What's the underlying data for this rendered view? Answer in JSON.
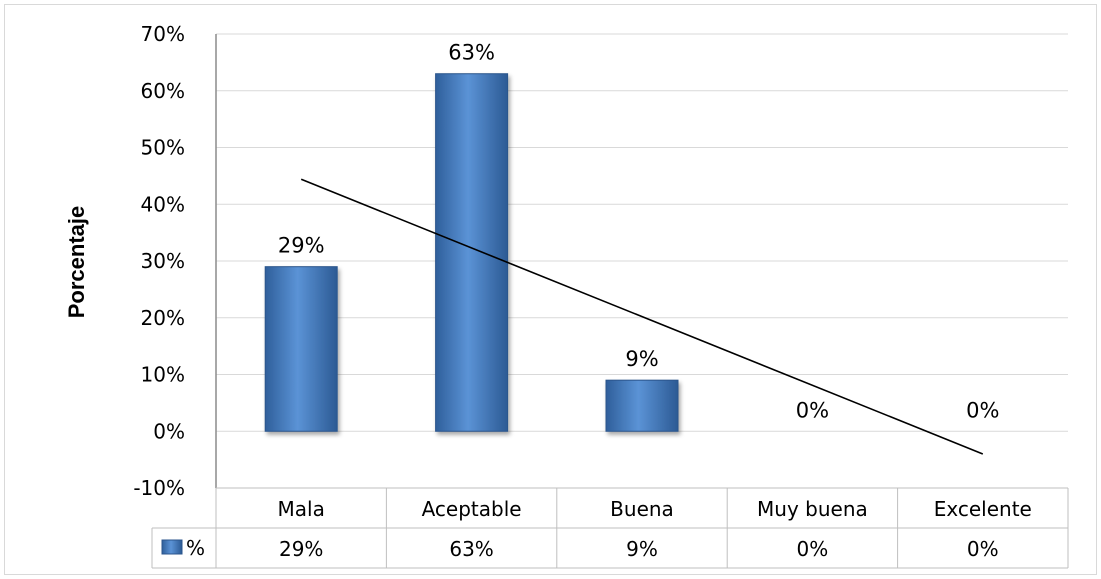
{
  "chart_data": {
    "type": "bar",
    "title": "",
    "xlabel": "",
    "ylabel": "Porcentaje",
    "ylim": [
      -10,
      70
    ],
    "yticks": [
      "70%",
      "60%",
      "50%",
      "40%",
      "30%",
      "20%",
      "10%",
      "0%",
      "-10%"
    ],
    "ytick_values": [
      70,
      60,
      50,
      40,
      30,
      20,
      10,
      0,
      -10
    ],
    "categories": [
      "Mala",
      "Aceptable",
      "Buena",
      "Muy buena",
      "Excelente"
    ],
    "series": [
      {
        "name": "%",
        "values": [
          29,
          63,
          9,
          0,
          0
        ],
        "labels": [
          "29%",
          "63%",
          "9%",
          "0%",
          "0%"
        ],
        "color": "#4f81bd"
      }
    ],
    "trendline": {
      "type": "linear",
      "color": "#000000"
    },
    "grid": true,
    "data_table": true,
    "legend": "data-table"
  }
}
